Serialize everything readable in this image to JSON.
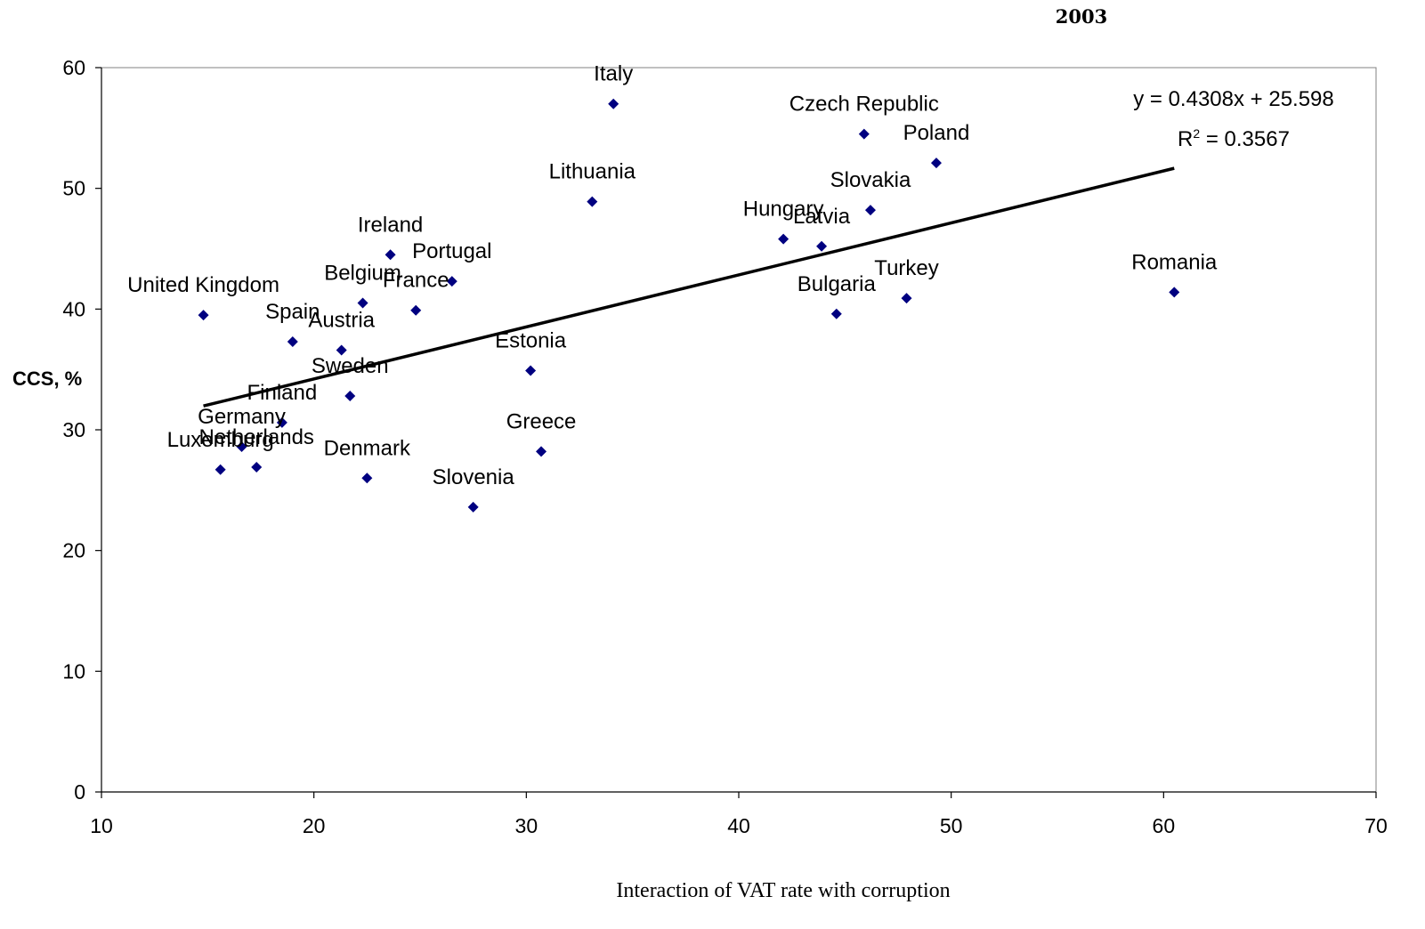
{
  "chart_data": {
    "type": "scatter",
    "title": "2003",
    "xlabel": "Interaction of VAT rate with corruption",
    "ylabel": "CCS, %",
    "xlim": [
      10,
      70
    ],
    "ylim": [
      0,
      60
    ],
    "xticks": [
      10,
      20,
      30,
      40,
      50,
      60,
      70
    ],
    "yticks": [
      0,
      10,
      20,
      30,
      40,
      50,
      60
    ],
    "grid": false,
    "marker_color": "#000080",
    "points": [
      {
        "label": "Italy",
        "x": 34.1,
        "y": 57.0
      },
      {
        "label": "Czech Republic",
        "x": 45.9,
        "y": 54.5
      },
      {
        "label": "Poland",
        "x": 49.3,
        "y": 52.1
      },
      {
        "label": "Lithuania",
        "x": 33.1,
        "y": 48.9
      },
      {
        "label": "Slovakia",
        "x": 46.2,
        "y": 48.2
      },
      {
        "label": "Hungary",
        "x": 42.1,
        "y": 45.8
      },
      {
        "label": "Latvia",
        "x": 43.9,
        "y": 45.2
      },
      {
        "label": "Ireland",
        "x": 23.6,
        "y": 44.5
      },
      {
        "label": "Portugal",
        "x": 26.5,
        "y": 42.3
      },
      {
        "label": "Belgium",
        "x": 22.3,
        "y": 40.5
      },
      {
        "label": "France",
        "x": 24.8,
        "y": 39.9
      },
      {
        "label": "United Kingdom",
        "x": 14.8,
        "y": 39.5
      },
      {
        "label": "Romania",
        "x": 60.5,
        "y": 41.4
      },
      {
        "label": "Turkey",
        "x": 47.9,
        "y": 40.9
      },
      {
        "label": "Bulgaria",
        "x": 44.6,
        "y": 39.6
      },
      {
        "label": "Spain",
        "x": 19.0,
        "y": 37.3
      },
      {
        "label": "Austria",
        "x": 21.3,
        "y": 36.6
      },
      {
        "label": "Estonia",
        "x": 30.2,
        "y": 34.9
      },
      {
        "label": "Sweden",
        "x": 21.7,
        "y": 32.8
      },
      {
        "label": "Finland",
        "x": 18.5,
        "y": 30.6
      },
      {
        "label": "Germany",
        "x": 16.6,
        "y": 28.6
      },
      {
        "label": "Greece",
        "x": 30.7,
        "y": 28.2
      },
      {
        "label": "Netherlands",
        "x": 17.3,
        "y": 26.9
      },
      {
        "label": "Luxemburg",
        "x": 15.6,
        "y": 26.7
      },
      {
        "label": "Denmark",
        "x": 22.5,
        "y": 26.0
      },
      {
        "label": "Slovenia",
        "x": 27.5,
        "y": 23.6
      }
    ],
    "trendline": {
      "slope": 0.4308,
      "intercept": 25.598,
      "x_range": [
        14.8,
        60.5
      ],
      "equation_label": "y = 0.4308x + 25.598",
      "r2_prefix": "R",
      "r2_sup": "2",
      "r2_value": " = 0.3567"
    }
  }
}
